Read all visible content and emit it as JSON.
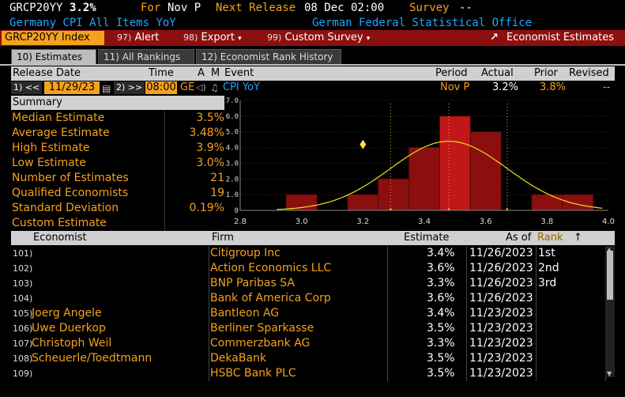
{
  "title_bar": {
    "ticker": "GRCP20YY",
    "value": "3.2%",
    "for_label": "For",
    "for_value": "Nov P",
    "next_release_label": "Next Release",
    "next_release_value": "08 Dec 02:00",
    "survey_label": "Survey",
    "survey_value": "--"
  },
  "subtitle": {
    "left": "Germany CPI All Items YoY",
    "right": "German Federal Statistical Office"
  },
  "menu": {
    "index_label": "GRCP20YY Index",
    "alert_num": "97)",
    "alert": "Alert",
    "export_num": "98)",
    "export": "Export",
    "survey_num": "99)",
    "custom_survey": "Custom Survey",
    "economist_estimates": "Economist Estimates"
  },
  "tabs": [
    {
      "label": "10) Estimates"
    },
    {
      "label": "11) All Rankings"
    },
    {
      "label": "12) Economist Rank History"
    }
  ],
  "header": {
    "release_date": "Release Date",
    "time": "Time",
    "a": "A",
    "m": "M",
    "event": "Event",
    "period": "Period",
    "actual": "Actual",
    "prior": "Prior",
    "revised": "Revised"
  },
  "event_row": {
    "prev_btn": "1) <<",
    "date": "11/29/23",
    "next_btn": "2) >>",
    "time": "08:00",
    "tz": "GE",
    "event": "CPI YoY",
    "period": "Nov P",
    "actual": "3.2%",
    "prior": "3.8%",
    "revised": "--"
  },
  "summary": {
    "title": "Summary",
    "rows": [
      {
        "label": "Median Estimate",
        "value": "3.5%"
      },
      {
        "label": "Average Estimate",
        "value": "3.48%"
      },
      {
        "label": "High Estimate",
        "value": "3.9%"
      },
      {
        "label": "Low Estimate",
        "value": "3.0%"
      },
      {
        "label": "Number of Estimates",
        "value": "21"
      },
      {
        "label": "Qualified Economists",
        "value": "19"
      },
      {
        "label": "Standard Deviation",
        "value": "0.19%"
      },
      {
        "label": "Custom Estimate",
        "value": ""
      }
    ]
  },
  "chart_data": {
    "type": "bar",
    "x": [
      3.0,
      3.1,
      3.2,
      3.3,
      3.4,
      3.5,
      3.6,
      3.7,
      3.8,
      3.9
    ],
    "values": [
      1,
      0,
      1,
      2,
      4,
      6,
      5,
      0,
      1,
      1
    ],
    "xlim": [
      2.8,
      4.0
    ],
    "ylim": [
      0,
      7
    ],
    "x_ticks": [
      "2.8",
      "3.0",
      "3.2",
      "3.4",
      "3.6",
      "3.8",
      "4.0"
    ],
    "y_ticks": [
      "0",
      "1.0",
      "2.0",
      "3.0",
      "4.0",
      "5.0",
      "6.0",
      "7.0"
    ],
    "normal_curve": {
      "mean": 3.48,
      "std": 0.19
    },
    "markers": {
      "actual": 3.2,
      "prior_estimate_low": 3.29,
      "median": 3.48,
      "high": 3.67
    },
    "colors": {
      "bar": "#8b0f0f",
      "bar_highlight": "#c01818",
      "curve": "#e8e020",
      "marker": "#f4a11c"
    }
  },
  "table": {
    "headers": {
      "economist": "Economist",
      "firm": "Firm",
      "estimate": "Estimate",
      "as_of": "As of",
      "rank": "Rank",
      "sort_arrow": "↑"
    },
    "rows": [
      {
        "num": "101)",
        "economist": "",
        "firm": "Citigroup Inc",
        "estimate": "3.4%",
        "as_of": "11/26/2023",
        "rank": "1st"
      },
      {
        "num": "102)",
        "economist": "",
        "firm": "Action Economics LLC",
        "estimate": "3.6%",
        "as_of": "11/26/2023",
        "rank": "2nd"
      },
      {
        "num": "103)",
        "economist": "",
        "firm": "BNP Paribas SA",
        "estimate": "3.3%",
        "as_of": "11/26/2023",
        "rank": "3rd"
      },
      {
        "num": "104)",
        "economist": "",
        "firm": "Bank of America Corp",
        "estimate": "3.6%",
        "as_of": "11/26/2023",
        "rank": ""
      },
      {
        "num": "105)",
        "economist": "Joerg Angele",
        "firm": "Bantleon AG",
        "estimate": "3.4%",
        "as_of": "11/23/2023",
        "rank": ""
      },
      {
        "num": "106)",
        "economist": "Uwe Duerkop",
        "firm": "Berliner Sparkasse",
        "estimate": "3.5%",
        "as_of": "11/23/2023",
        "rank": ""
      },
      {
        "num": "107)",
        "economist": "Christoph Weil",
        "firm": "Commerzbank AG",
        "estimate": "3.3%",
        "as_of": "11/23/2023",
        "rank": ""
      },
      {
        "num": "108)",
        "economist": "Scheuerle/Toedtmann",
        "firm": "DekaBank",
        "estimate": "3.5%",
        "as_of": "11/23/2023",
        "rank": ""
      },
      {
        "num": "109)",
        "economist": "",
        "firm": "HSBC Bank PLC",
        "estimate": "3.5%",
        "as_of": "11/23/2023",
        "rank": ""
      }
    ]
  }
}
